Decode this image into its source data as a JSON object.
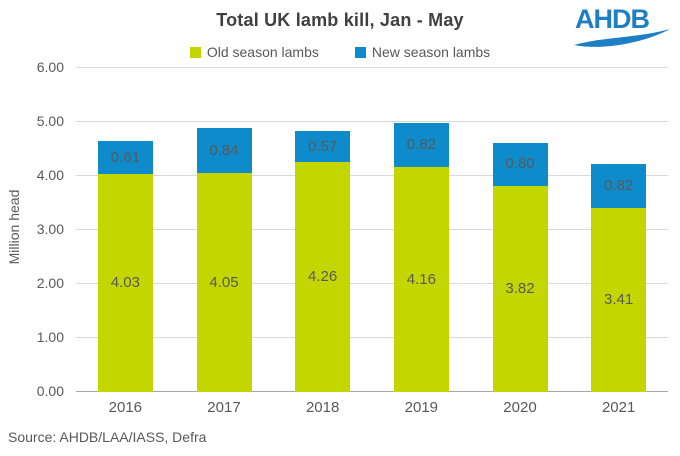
{
  "header": {
    "logo_text": "AHDB",
    "logo_color": "#1f7fc4"
  },
  "source": "Source: AHDB/LAA/IASS, Defra",
  "colors": {
    "title_text": "#404040",
    "axis_text": "#595959",
    "gridline": "#d9d9d9",
    "axis_line": "#a6a6a6"
  },
  "chart_data": {
    "type": "bar",
    "stacked": true,
    "title": "Total UK lamb kill, Jan - May",
    "categories": [
      "2016",
      "2017",
      "2018",
      "2019",
      "2020",
      "2021"
    ],
    "series": [
      {
        "name": "Old season lambs",
        "color": "#c4d600",
        "values": [
          4.03,
          4.05,
          4.26,
          4.16,
          3.82,
          3.41
        ]
      },
      {
        "name": "New season lambs",
        "color": "#0e8bca",
        "values": [
          0.61,
          0.84,
          0.57,
          0.82,
          0.8,
          0.82
        ]
      }
    ],
    "ylabel": "Million head",
    "ylim": [
      0,
      6
    ],
    "ytick_step": 1,
    "ytick_decimals": 2,
    "value_label_decimals": 2,
    "grid": true,
    "legend_position": "top"
  }
}
